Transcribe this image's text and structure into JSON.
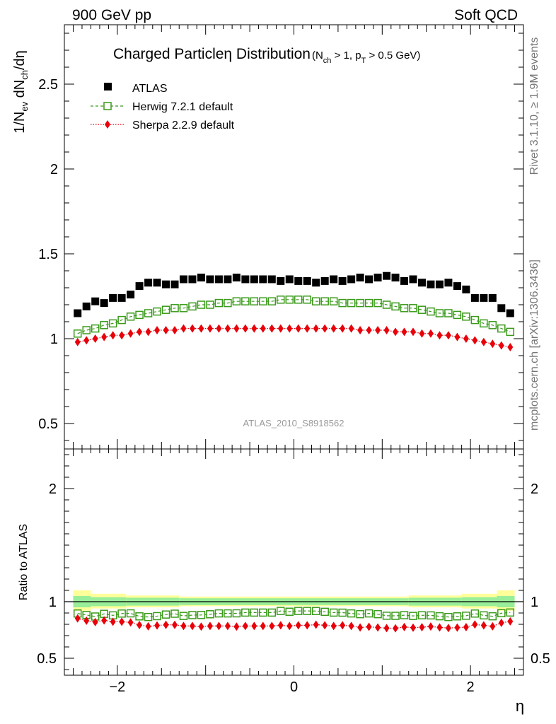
{
  "header": {
    "left": "900 GeV pp",
    "right": "Soft QCD"
  },
  "side_labels": {
    "rivet": "Rivet 3.1.10, ≥ 1.9M events",
    "mcplots": "mcplots.cern.ch [arXiv:1306.3436]"
  },
  "chart_data": {
    "type": "scatter",
    "title": "Charged Particleη Distribution",
    "title_cuts": "(N_ch > 1, p_T > 0.5 GeV)",
    "analysis_id": "ATLAS_2010_S8918562",
    "xlabel": "η",
    "ylabel": "1/N_ev dN_ch/dη",
    "ratio_ylabel": "Ratio to ATLAS",
    "xlim": [
      -2.6,
      2.6
    ],
    "ylim": [
      0.35,
      2.85
    ],
    "ratio_ylim": [
      0.35,
      2.35
    ],
    "x_ticks": [
      "−2",
      "0",
      "2"
    ],
    "y_ticks": [
      "0.5",
      "1",
      "1.5",
      "2",
      "2.5"
    ],
    "ratio_y_ticks": [
      "0.5",
      "1",
      "2"
    ],
    "legend_position": "top-left",
    "x": [
      -2.45,
      -2.35,
      -2.25,
      -2.15,
      -2.05,
      -1.95,
      -1.85,
      -1.75,
      -1.65,
      -1.55,
      -1.45,
      -1.35,
      -1.25,
      -1.15,
      -1.05,
      -0.95,
      -0.85,
      -0.75,
      -0.65,
      -0.55,
      -0.45,
      -0.35,
      -0.25,
      -0.15,
      -0.05,
      0.05,
      0.15,
      0.25,
      0.35,
      0.45,
      0.55,
      0.65,
      0.75,
      0.85,
      0.95,
      1.05,
      1.15,
      1.25,
      1.35,
      1.45,
      1.55,
      1.65,
      1.75,
      1.85,
      1.95,
      2.05,
      2.15,
      2.25,
      2.35,
      2.45
    ],
    "series": [
      {
        "name": "ATLAS",
        "color": "#000000",
        "marker": "square-filled",
        "values": [
          1.15,
          1.19,
          1.22,
          1.21,
          1.24,
          1.24,
          1.26,
          1.31,
          1.33,
          1.33,
          1.32,
          1.32,
          1.35,
          1.35,
          1.36,
          1.35,
          1.35,
          1.35,
          1.36,
          1.35,
          1.35,
          1.35,
          1.35,
          1.34,
          1.35,
          1.34,
          1.34,
          1.33,
          1.34,
          1.35,
          1.34,
          1.35,
          1.36,
          1.35,
          1.36,
          1.37,
          1.36,
          1.34,
          1.35,
          1.33,
          1.32,
          1.32,
          1.33,
          1.31,
          1.29,
          1.24,
          1.24,
          1.24,
          1.18,
          1.15
        ]
      },
      {
        "name": "Herwig 7.2.1 default",
        "color": "#3a9a1a",
        "marker": "square-open",
        "line": "dashed",
        "values": [
          1.03,
          1.05,
          1.06,
          1.08,
          1.09,
          1.11,
          1.13,
          1.14,
          1.15,
          1.16,
          1.17,
          1.18,
          1.18,
          1.19,
          1.2,
          1.2,
          1.21,
          1.21,
          1.22,
          1.22,
          1.22,
          1.22,
          1.22,
          1.23,
          1.23,
          1.23,
          1.23,
          1.22,
          1.22,
          1.22,
          1.21,
          1.21,
          1.21,
          1.21,
          1.21,
          1.2,
          1.19,
          1.18,
          1.18,
          1.17,
          1.16,
          1.15,
          1.15,
          1.14,
          1.13,
          1.11,
          1.09,
          1.08,
          1.06,
          1.04
        ]
      },
      {
        "name": "Sherpa 2.2.9 default",
        "color": "#e8000a",
        "marker": "diamond-filled",
        "line": "dotted",
        "values": [
          0.98,
          0.99,
          1.0,
          1.01,
          1.02,
          1.02,
          1.03,
          1.04,
          1.04,
          1.05,
          1.05,
          1.05,
          1.06,
          1.06,
          1.06,
          1.06,
          1.06,
          1.06,
          1.06,
          1.06,
          1.06,
          1.06,
          1.06,
          1.06,
          1.06,
          1.06,
          1.06,
          1.06,
          1.06,
          1.06,
          1.06,
          1.06,
          1.05,
          1.05,
          1.05,
          1.05,
          1.04,
          1.04,
          1.04,
          1.03,
          1.03,
          1.02,
          1.02,
          1.01,
          1.0,
          0.99,
          0.98,
          0.97,
          0.96,
          0.95
        ]
      }
    ],
    "ratio_band": {
      "bins": [
        {
          "x": [
            -2.5,
            -2.3
          ],
          "inner": [
            0.95,
            1.05
          ],
          "outer": [
            0.92,
            1.1
          ]
        },
        {
          "x": [
            -2.3,
            -1.9
          ],
          "inner": [
            0.96,
            1.04
          ],
          "outer": [
            0.94,
            1.07
          ]
        },
        {
          "x": [
            -1.9,
            -1.3
          ],
          "inner": [
            0.965,
            1.035
          ],
          "outer": [
            0.95,
            1.055
          ]
        },
        {
          "x": [
            -1.3,
            1.3
          ],
          "inner": [
            0.97,
            1.03
          ],
          "outer": [
            0.96,
            1.045
          ]
        },
        {
          "x": [
            1.3,
            1.9
          ],
          "inner": [
            0.965,
            1.035
          ],
          "outer": [
            0.95,
            1.055
          ]
        },
        {
          "x": [
            1.9,
            2.3
          ],
          "inner": [
            0.96,
            1.04
          ],
          "outer": [
            0.94,
            1.07
          ]
        },
        {
          "x": [
            2.3,
            2.5
          ],
          "inner": [
            0.95,
            1.05
          ],
          "outer": [
            0.92,
            1.1
          ]
        }
      ],
      "inner_color": "#99ee99",
      "outer_color": "#ffff99"
    }
  }
}
